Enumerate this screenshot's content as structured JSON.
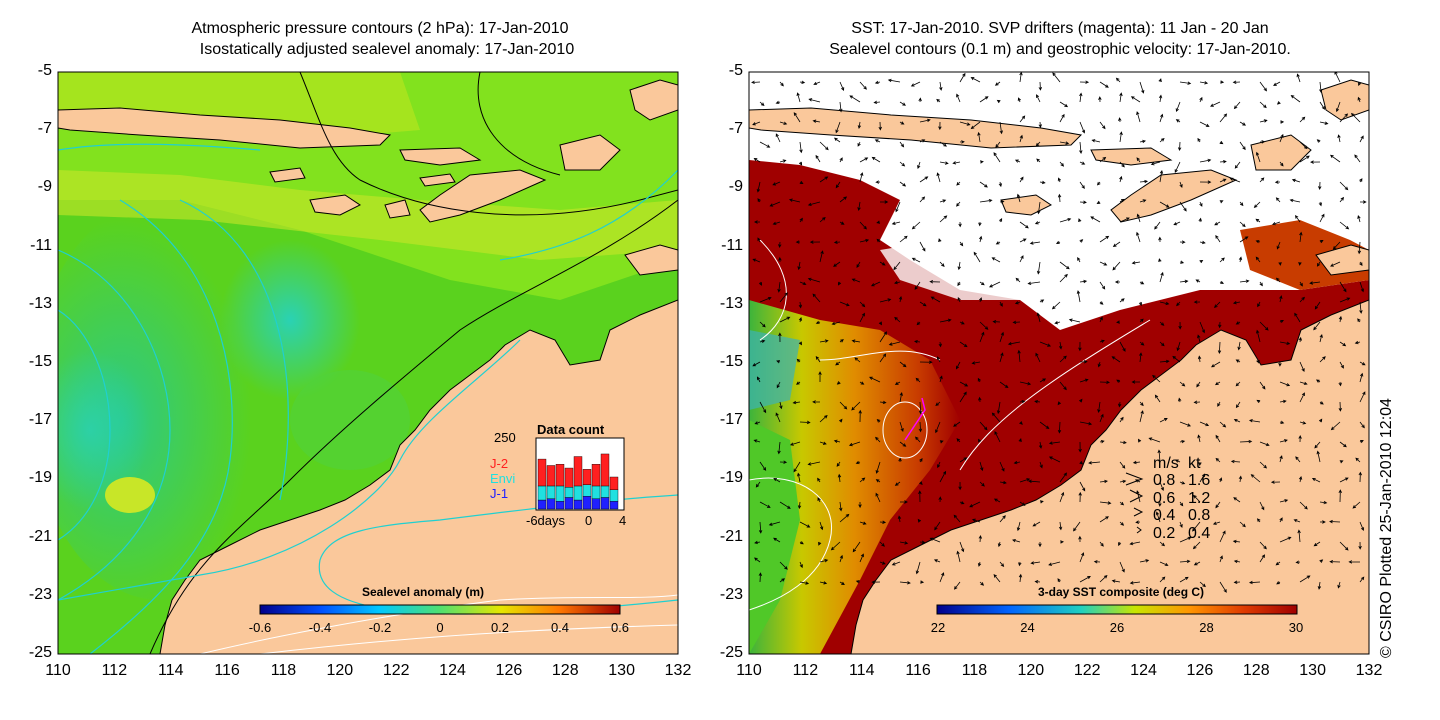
{
  "left_panel": {
    "title_line1": "Atmospheric pressure contours (2 hPa): 17-Jan-2010",
    "title_line2": "Isostatically adjusted sealevel anomaly: 17-Jan-2010",
    "x_ticks": [
      "110",
      "112",
      "114",
      "116",
      "118",
      "120",
      "122",
      "124",
      "126",
      "128",
      "130",
      "132"
    ],
    "y_ticks": [
      "-5",
      "-7",
      "-9",
      "-11",
      "-13",
      "-15",
      "-17",
      "-19",
      "-21",
      "-23",
      "-25"
    ],
    "colorbar": {
      "label": "Sealevel anomaly (m)",
      "ticks": [
        "-0.6",
        "-0.4",
        "-0.2",
        "0",
        "0.2",
        "0.4",
        "0.6"
      ]
    },
    "inset": {
      "title": "Data count",
      "ymax": "250",
      "legend": [
        {
          "name": "J-2",
          "color": "#ff2020"
        },
        {
          "name": "Envi",
          "color": "#20e0e0"
        },
        {
          "name": "J-1",
          "color": "#2020ff"
        }
      ],
      "x_start": "-6days",
      "x_mid": "0",
      "x_end": "4",
      "bars": [
        {
          "j1": 35,
          "envi": 55,
          "j2": 105
        },
        {
          "j1": 40,
          "envi": 50,
          "j2": 80
        },
        {
          "j1": 30,
          "envi": 60,
          "j2": 85
        },
        {
          "j1": 45,
          "envi": 40,
          "j2": 75
        },
        {
          "j1": 35,
          "envi": 55,
          "j2": 115
        },
        {
          "j1": 50,
          "envi": 45,
          "j2": 60
        },
        {
          "j1": 40,
          "envi": 50,
          "j2": 85
        },
        {
          "j1": 45,
          "envi": 45,
          "j2": 125
        },
        {
          "j1": 30,
          "envi": 45,
          "j2": 50
        }
      ]
    }
  },
  "right_panel": {
    "title_line1": "SST: 17-Jan-2010. SVP drifters (magenta): 11 Jan - 20 Jan",
    "title_line2": "Sealevel contours (0.1 m) and geostrophic velocity: 17-Jan-2010.",
    "x_ticks": [
      "110",
      "112",
      "114",
      "116",
      "118",
      "120",
      "122",
      "124",
      "126",
      "128",
      "130",
      "132"
    ],
    "y_ticks": [
      "-5",
      "-7",
      "-9",
      "-11",
      "-13",
      "-15",
      "-17",
      "-19",
      "-21",
      "-23",
      "-25"
    ],
    "colorbar": {
      "label": "3-day SST composite (deg C)",
      "ticks": [
        "22",
        "24",
        "26",
        "28",
        "30"
      ]
    },
    "velocity_legend": {
      "header_ms": "m/s",
      "header_kt": "kt",
      "rows": [
        {
          "ms": "0.8",
          "kt": "1.6"
        },
        {
          "ms": "0.6",
          "kt": "1.2"
        },
        {
          "ms": "0.4",
          "kt": "0.8"
        },
        {
          "ms": "0.2",
          "kt": "0.4"
        }
      ]
    }
  },
  "credit": "© CSIRO Plotted 25-Jan-2010 12:04",
  "colors": {
    "land": "#fac89b",
    "ocean_green": "#5ad21e",
    "sst_hot": "#a00000",
    "cloud": "#ffffff"
  }
}
